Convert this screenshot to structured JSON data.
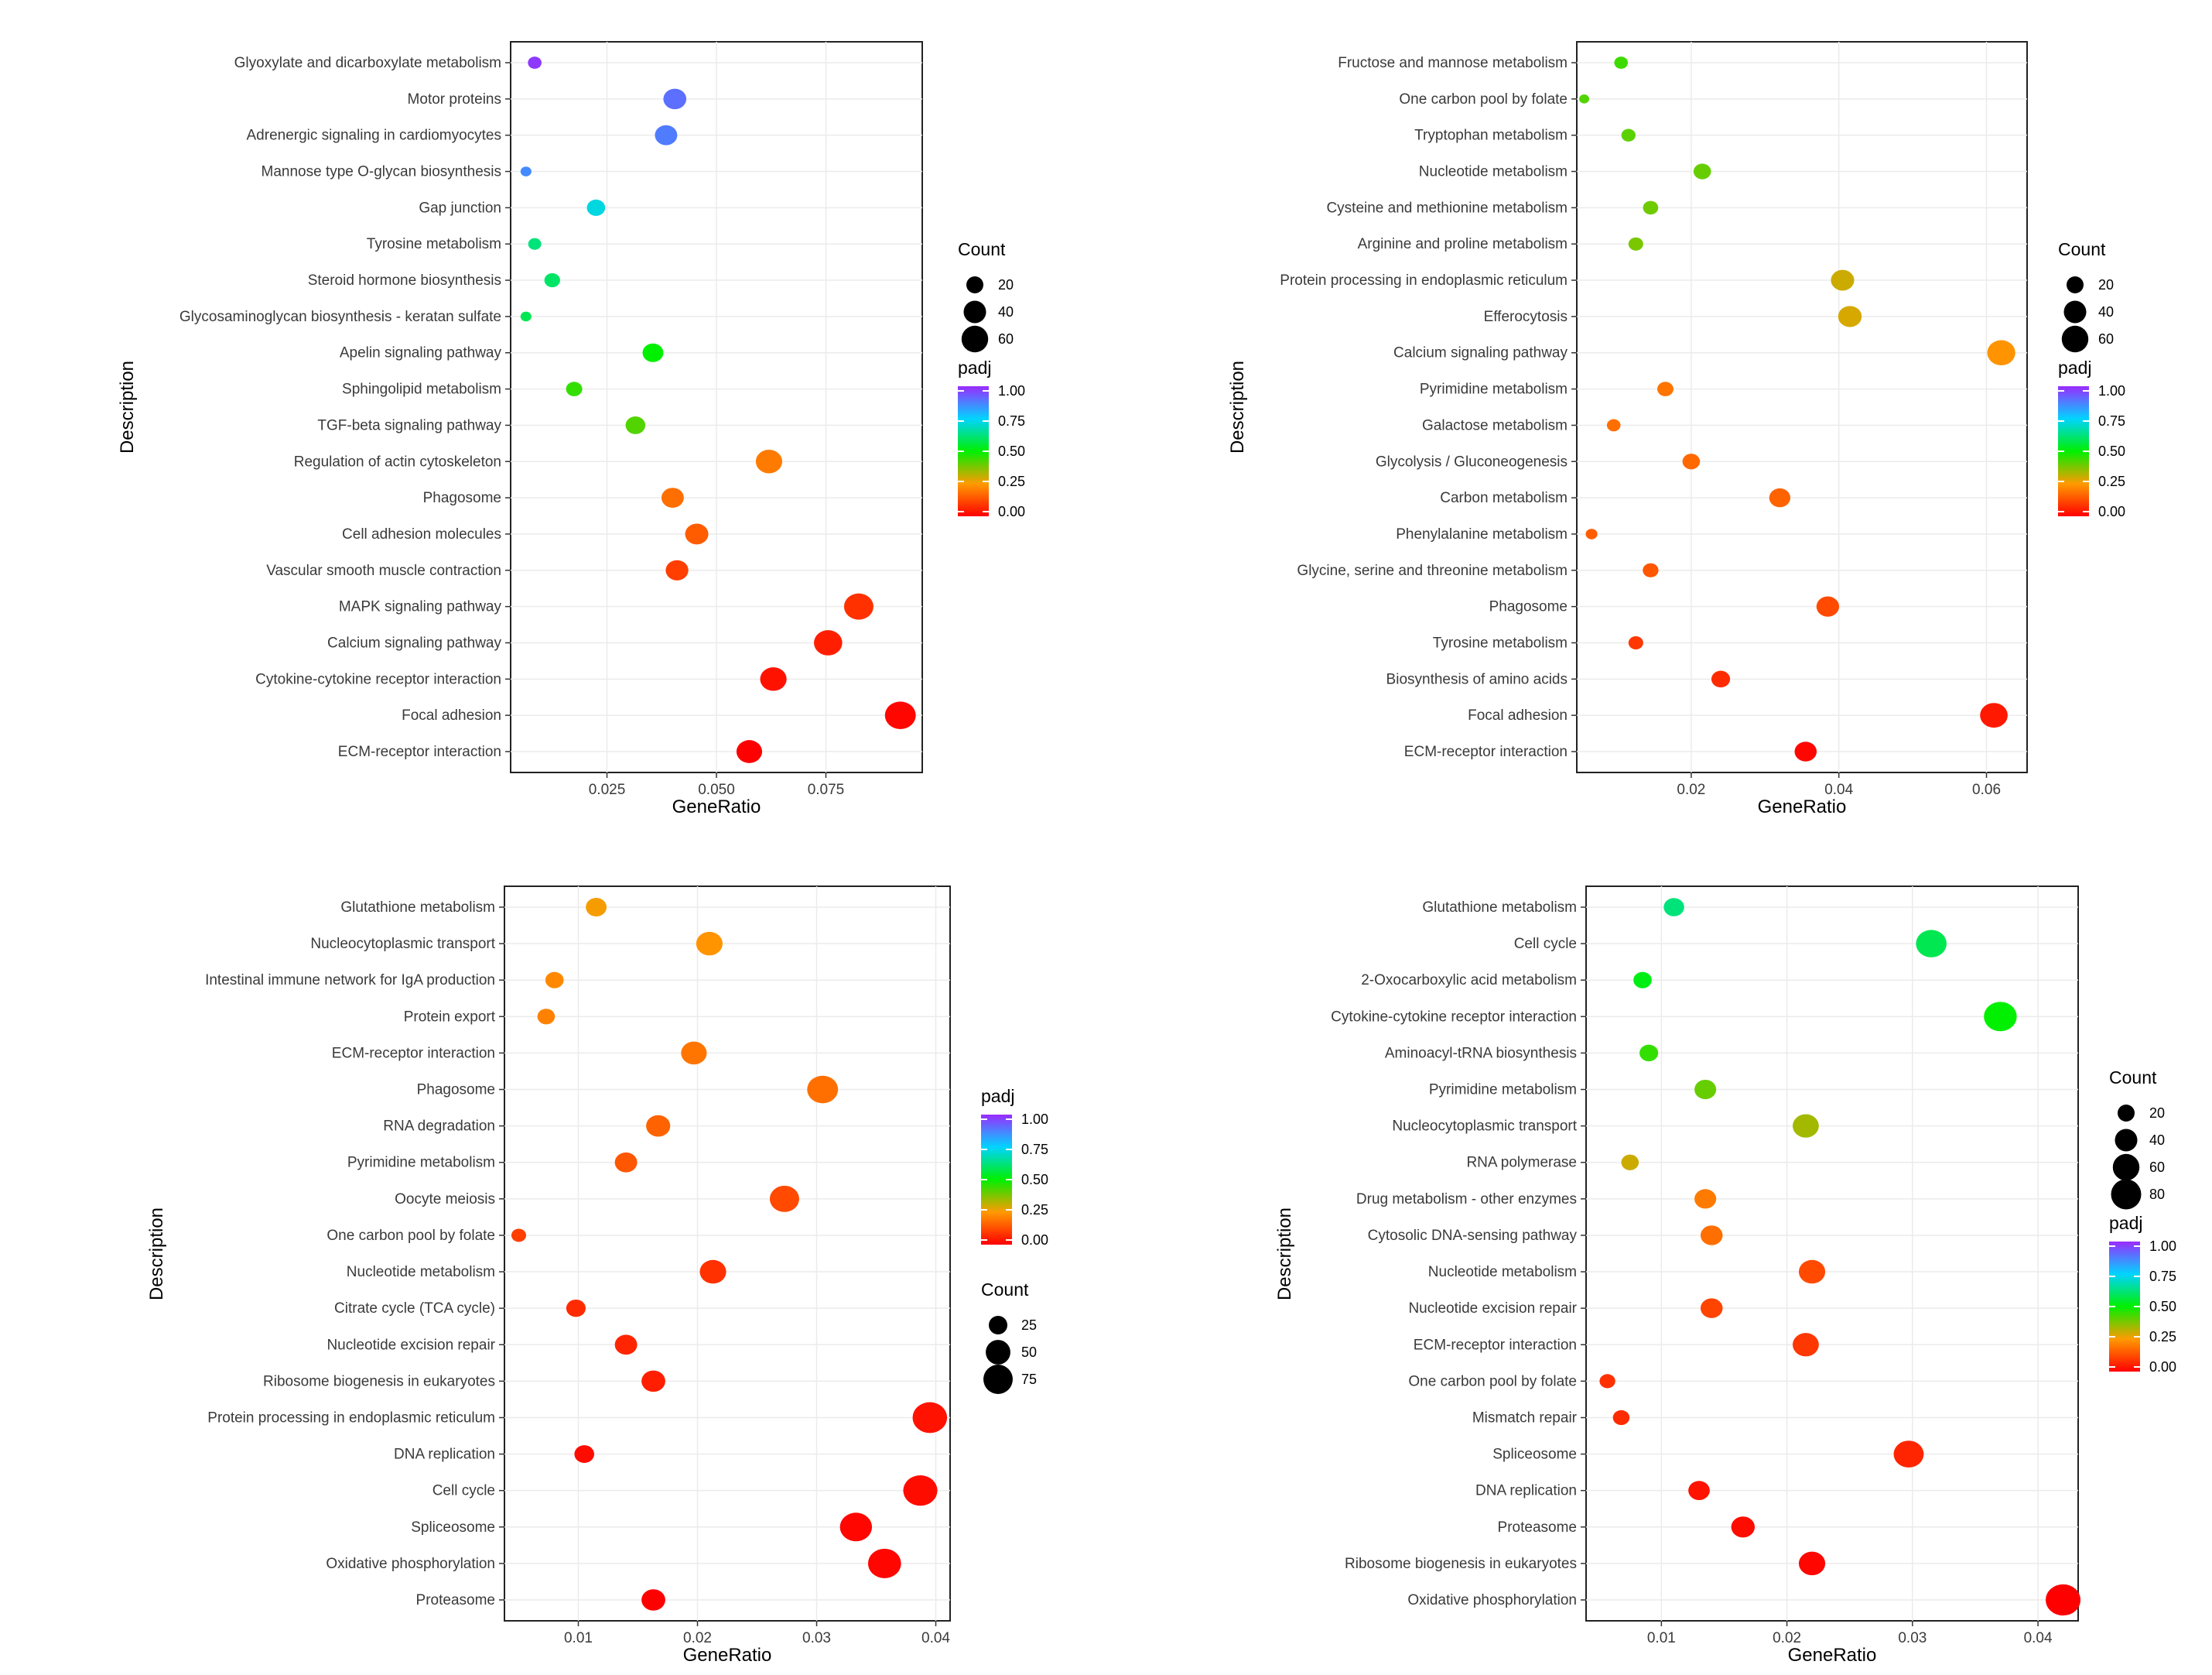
{
  "chart_data": [
    {
      "type": "scatter",
      "panel": "a",
      "xlabel": "GeneRatio",
      "ylabel": "Description",
      "xlim": [
        0.003,
        0.097
      ],
      "xticks": [
        0.025,
        0.05,
        0.075
      ],
      "xtick_labels": [
        "0.025",
        "0.050",
        "0.075"
      ],
      "size_legend": {
        "title": "Count",
        "values": [
          20,
          40,
          60
        ],
        "labels": [
          "20",
          "40",
          "60"
        ]
      },
      "color_legend": {
        "title": "padj",
        "ticks": [
          "1.00",
          "0.75",
          "0.50",
          "0.25",
          "0.00"
        ]
      },
      "legend_order": "count-first",
      "points": [
        {
          "label": "Glyoxylate and dicarboxylate metabolism",
          "x": 0.0085,
          "count": 8,
          "padj": 0.98
        },
        {
          "label": "Motor proteins",
          "x": 0.0405,
          "count": 32,
          "padj": 0.9
        },
        {
          "label": "Adrenergic signaling in cardiomyocytes",
          "x": 0.0385,
          "count": 30,
          "padj": 0.88
        },
        {
          "label": "Mannose type O-glycan biosynthesis",
          "x": 0.0065,
          "count": 4,
          "padj": 0.86
        },
        {
          "label": "Gap junction",
          "x": 0.0225,
          "count": 18,
          "padj": 0.72
        },
        {
          "label": "Tyrosine metabolism",
          "x": 0.0085,
          "count": 7,
          "padj": 0.62
        },
        {
          "label": "Steroid hormone biosynthesis",
          "x": 0.0125,
          "count": 12,
          "padj": 0.6
        },
        {
          "label": "Glycosaminoglycan biosynthesis - keratan sulfate",
          "x": 0.0065,
          "count": 4,
          "padj": 0.58
        },
        {
          "label": "Apelin signaling pathway",
          "x": 0.0355,
          "count": 25,
          "padj": 0.5
        },
        {
          "label": "Sphingolipid metabolism",
          "x": 0.0175,
          "count": 13,
          "padj": 0.45
        },
        {
          "label": "TGF-beta signaling pathway",
          "x": 0.0315,
          "count": 22,
          "padj": 0.42
        },
        {
          "label": "Regulation of actin cytoskeleton",
          "x": 0.062,
          "count": 45,
          "padj": 0.2
        },
        {
          "label": "Phagosome",
          "x": 0.04,
          "count": 30,
          "padj": 0.18
        },
        {
          "label": "Cell adhesion molecules",
          "x": 0.0455,
          "count": 33,
          "padj": 0.15
        },
        {
          "label": "Vascular smooth muscle contraction",
          "x": 0.041,
          "count": 31,
          "padj": 0.1
        },
        {
          "label": "MAPK signaling pathway",
          "x": 0.0825,
          "count": 58,
          "padj": 0.08
        },
        {
          "label": "Calcium signaling pathway",
          "x": 0.0755,
          "count": 53,
          "padj": 0.05
        },
        {
          "label": "Cytokine-cytokine receptor interaction",
          "x": 0.063,
          "count": 45,
          "padj": 0.03
        },
        {
          "label": "Focal adhesion",
          "x": 0.092,
          "count": 65,
          "padj": 0.01
        },
        {
          "label": "ECM-receptor interaction",
          "x": 0.0575,
          "count": 42,
          "padj": 0.0
        }
      ]
    },
    {
      "type": "scatter",
      "panel": "b",
      "xlabel": "GeneRatio",
      "ylabel": "Description",
      "xlim": [
        0.0045,
        0.0655
      ],
      "xticks": [
        0.02,
        0.04,
        0.06
      ],
      "xtick_labels": [
        "0.02",
        "0.04",
        "0.06"
      ],
      "size_legend": {
        "title": "Count",
        "values": [
          20,
          40,
          60
        ],
        "labels": [
          "20",
          "40",
          "60"
        ]
      },
      "color_legend": {
        "title": "padj",
        "ticks": [
          "1.00",
          "0.75",
          "0.50",
          "0.25",
          "0.00"
        ]
      },
      "legend_order": "count-first",
      "points": [
        {
          "label": "Fructose and mannose metabolism",
          "x": 0.0105,
          "count": 8,
          "padj": 0.44
        },
        {
          "label": "One carbon pool by folate",
          "x": 0.0055,
          "count": 3,
          "padj": 0.42
        },
        {
          "label": "Tryptophan metabolism",
          "x": 0.0115,
          "count": 9,
          "padj": 0.41
        },
        {
          "label": "Nucleotide metabolism",
          "x": 0.0215,
          "count": 16,
          "padj": 0.4
        },
        {
          "label": "Cysteine and methionine metabolism",
          "x": 0.0145,
          "count": 11,
          "padj": 0.39
        },
        {
          "label": "Arginine and proline metabolism",
          "x": 0.0125,
          "count": 10,
          "padj": 0.38
        },
        {
          "label": "Protein processing in endoplasmic reticulum",
          "x": 0.0405,
          "count": 33,
          "padj": 0.3
        },
        {
          "label": "Efferocytosis",
          "x": 0.0415,
          "count": 34,
          "padj": 0.29
        },
        {
          "label": "Calcium signaling pathway",
          "x": 0.062,
          "count": 52,
          "padj": 0.24
        },
        {
          "label": "Pyrimidine metabolism",
          "x": 0.0165,
          "count": 13,
          "padj": 0.19
        },
        {
          "label": "Galactose metabolism",
          "x": 0.0095,
          "count": 8,
          "padj": 0.18
        },
        {
          "label": "Glycolysis / Gluconeogenesis",
          "x": 0.02,
          "count": 16,
          "padj": 0.17
        },
        {
          "label": "Carbon metabolism",
          "x": 0.032,
          "count": 26,
          "padj": 0.16
        },
        {
          "label": "Phenylalanine metabolism",
          "x": 0.0065,
          "count": 5,
          "padj": 0.15
        },
        {
          "label": "Glycine, serine and threonine metabolism",
          "x": 0.0145,
          "count": 12,
          "padj": 0.14
        },
        {
          "label": "Phagosome",
          "x": 0.0385,
          "count": 31,
          "padj": 0.12
        },
        {
          "label": "Tyrosine metabolism",
          "x": 0.0125,
          "count": 10,
          "padj": 0.09
        },
        {
          "label": "Biosynthesis of amino acids",
          "x": 0.024,
          "count": 19,
          "padj": 0.07
        },
        {
          "label": "Focal adhesion",
          "x": 0.061,
          "count": 50,
          "padj": 0.04
        },
        {
          "label": "ECM-receptor interaction",
          "x": 0.0355,
          "count": 29,
          "padj": 0.01
        }
      ]
    },
    {
      "type": "scatter",
      "panel": "c",
      "xlabel": "GeneRatio",
      "ylabel": "Description",
      "xlim": [
        0.0038,
        0.0412
      ],
      "xticks": [
        0.01,
        0.02,
        0.03,
        0.04
      ],
      "xtick_labels": [
        "0.01",
        "0.02",
        "0.03",
        "0.04"
      ],
      "size_legend": {
        "title": "Count",
        "values": [
          25,
          50,
          75
        ],
        "labels": [
          "25",
          "50",
          "75"
        ]
      },
      "color_legend": {
        "title": "padj",
        "ticks": [
          "1.00",
          "0.75",
          "0.50",
          "0.25",
          "0.00"
        ]
      },
      "legend_order": "padj-first",
      "points": [
        {
          "label": "Glutathione metabolism",
          "x": 0.0115,
          "count": 25,
          "padj": 0.26
        },
        {
          "label": "Nucleocytoplasmic transport",
          "x": 0.021,
          "count": 45,
          "padj": 0.24
        },
        {
          "label": "Intestinal immune network for IgA production",
          "x": 0.008,
          "count": 18,
          "padj": 0.22
        },
        {
          "label": "Protein export",
          "x": 0.0073,
          "count": 16,
          "padj": 0.21
        },
        {
          "label": "ECM-receptor interaction",
          "x": 0.0197,
          "count": 42,
          "padj": 0.19
        },
        {
          "label": "Phagosome",
          "x": 0.0305,
          "count": 65,
          "padj": 0.18
        },
        {
          "label": "RNA degradation",
          "x": 0.0167,
          "count": 36,
          "padj": 0.16
        },
        {
          "label": "Pyrimidine metabolism",
          "x": 0.014,
          "count": 30,
          "padj": 0.14
        },
        {
          "label": "Oocyte meiosis",
          "x": 0.0273,
          "count": 58,
          "padj": 0.12
        },
        {
          "label": "One carbon pool by folate",
          "x": 0.005,
          "count": 10,
          "padj": 0.1
        },
        {
          "label": "Nucleotide metabolism",
          "x": 0.0213,
          "count": 45,
          "padj": 0.08
        },
        {
          "label": "Citrate cycle (TCA cycle)",
          "x": 0.0098,
          "count": 21,
          "padj": 0.07
        },
        {
          "label": "Nucleotide excision repair",
          "x": 0.014,
          "count": 30,
          "padj": 0.06
        },
        {
          "label": "Ribosome biogenesis in eukaryotes",
          "x": 0.0163,
          "count": 35,
          "padj": 0.05
        },
        {
          "label": "Protein processing in endoplasmic reticulum",
          "x": 0.0395,
          "count": 84,
          "padj": 0.03
        },
        {
          "label": "DNA replication",
          "x": 0.0105,
          "count": 22,
          "padj": 0.02
        },
        {
          "label": "Cell cycle",
          "x": 0.0387,
          "count": 82,
          "padj": 0.02
        },
        {
          "label": "Spliceosome",
          "x": 0.0333,
          "count": 71,
          "padj": 0.01
        },
        {
          "label": "Oxidative phosphorylation",
          "x": 0.0357,
          "count": 76,
          "padj": 0.01
        },
        {
          "label": "Proteasome",
          "x": 0.0163,
          "count": 35,
          "padj": 0.0
        }
      ]
    },
    {
      "type": "scatter",
      "panel": "d",
      "xlabel": "GeneRatio",
      "ylabel": "Description",
      "xlim": [
        0.004,
        0.0432
      ],
      "xticks": [
        0.01,
        0.02,
        0.03,
        0.04
      ],
      "xtick_labels": [
        "0.01",
        "0.02",
        "0.03",
        "0.04"
      ],
      "size_legend": {
        "title": "Count",
        "values": [
          20,
          40,
          60,
          80
        ],
        "labels": [
          "20",
          "40",
          "60",
          "80"
        ]
      },
      "color_legend": {
        "title": "padj",
        "ticks": [
          "1.00",
          "0.75",
          "0.50",
          "0.25",
          "0.00"
        ]
      },
      "legend_order": "count-first",
      "points": [
        {
          "label": "Glutathione metabolism",
          "x": 0.011,
          "count": 24,
          "padj": 0.62
        },
        {
          "label": "Cell cycle",
          "x": 0.0315,
          "count": 64,
          "padj": 0.58
        },
        {
          "label": "2-Oxocarboxylic acid metabolism",
          "x": 0.0085,
          "count": 18,
          "padj": 0.52
        },
        {
          "label": "Cytokine-cytokine receptor interaction",
          "x": 0.037,
          "count": 75,
          "padj": 0.5
        },
        {
          "label": "Aminoacyl-tRNA biosynthesis",
          "x": 0.009,
          "count": 19,
          "padj": 0.45
        },
        {
          "label": "Pyrimidine metabolism",
          "x": 0.0135,
          "count": 28,
          "padj": 0.4
        },
        {
          "label": "Nucleocytoplasmic transport",
          "x": 0.0215,
          "count": 44,
          "padj": 0.34
        },
        {
          "label": "RNA polymerase",
          "x": 0.0075,
          "count": 16,
          "padj": 0.3
        },
        {
          "label": "Drug metabolism - other enzymes",
          "x": 0.0135,
          "count": 28,
          "padj": 0.2
        },
        {
          "label": "Cytosolic DNA-sensing pathway",
          "x": 0.014,
          "count": 29,
          "padj": 0.18
        },
        {
          "label": "Nucleotide metabolism",
          "x": 0.022,
          "count": 45,
          "padj": 0.12
        },
        {
          "label": "Nucleotide excision repair",
          "x": 0.014,
          "count": 29,
          "padj": 0.11
        },
        {
          "label": "ECM-receptor interaction",
          "x": 0.0215,
          "count": 44,
          "padj": 0.09
        },
        {
          "label": "One carbon pool by folate",
          "x": 0.0057,
          "count": 12,
          "padj": 0.08
        },
        {
          "label": "Mismatch repair",
          "x": 0.0068,
          "count": 14,
          "padj": 0.07
        },
        {
          "label": "Spliceosome",
          "x": 0.0297,
          "count": 61,
          "padj": 0.06
        },
        {
          "label": "DNA replication",
          "x": 0.013,
          "count": 27,
          "padj": 0.03
        },
        {
          "label": "Proteasome",
          "x": 0.0165,
          "count": 34,
          "padj": 0.02
        },
        {
          "label": "Ribosome biogenesis in eukaryotes",
          "x": 0.022,
          "count": 45,
          "padj": 0.01
        },
        {
          "label": "Oxidative phosphorylation",
          "x": 0.042,
          "count": 86,
          "padj": 0.0
        }
      ]
    }
  ]
}
